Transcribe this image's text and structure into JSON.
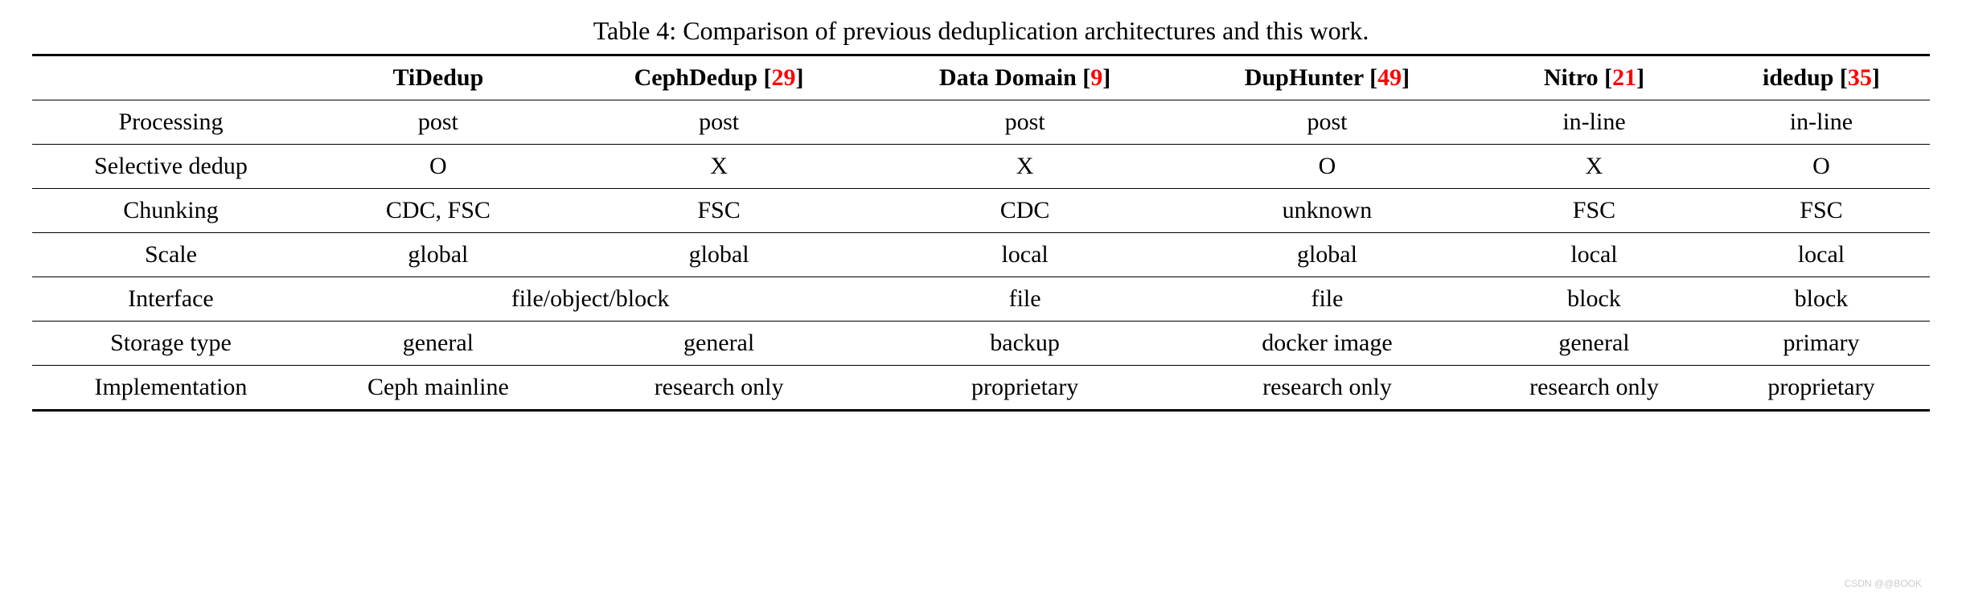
{
  "caption": "Table 4: Comparison of previous deduplication architectures and this work.",
  "columns": [
    {
      "label": "TiDedup",
      "cite": null
    },
    {
      "label": "CephDedup",
      "cite": "29"
    },
    {
      "label": "Data Domain",
      "cite": "9"
    },
    {
      "label": "DupHunter",
      "cite": "49"
    },
    {
      "label": "Nitro",
      "cite": "21"
    },
    {
      "label": "idedup",
      "cite": "35"
    }
  ],
  "rows": [
    {
      "label": "Processing",
      "cells": [
        "post",
        "post",
        "post",
        "post",
        "in-line",
        "in-line"
      ],
      "span": null
    },
    {
      "label": "Selective dedup",
      "cells": [
        "O",
        "X",
        "X",
        "O",
        "X",
        "O"
      ],
      "span": null
    },
    {
      "label": "Chunking",
      "cells": [
        "CDC, FSC",
        "FSC",
        "CDC",
        "unknown",
        "FSC",
        "FSC"
      ],
      "span": null
    },
    {
      "label": "Scale",
      "cells": [
        "global",
        "global",
        "local",
        "global",
        "local",
        "local"
      ],
      "span": null
    },
    {
      "label": "Interface",
      "cells": [
        "file/object/block",
        "file",
        "file",
        "block",
        "block"
      ],
      "span": {
        "index": 0,
        "colspan": 2
      }
    },
    {
      "label": "Storage type",
      "cells": [
        "general",
        "general",
        "backup",
        "docker image",
        "general",
        "primary"
      ],
      "span": null
    },
    {
      "label": "Implementation",
      "cells": [
        "Ceph mainline",
        "research only",
        "proprietary",
        "research only",
        "research only",
        "proprietary"
      ],
      "span": null
    }
  ],
  "style": {
    "text_color": "#000000",
    "cite_color": "#ff0000",
    "background": "#ffffff",
    "caption_fontsize": 32,
    "cell_fontsize": 30,
    "top_rule_width": 3,
    "mid_rule_width": 1,
    "bottom_rule_width": 3
  },
  "watermark": "CSDN @@BOOK"
}
